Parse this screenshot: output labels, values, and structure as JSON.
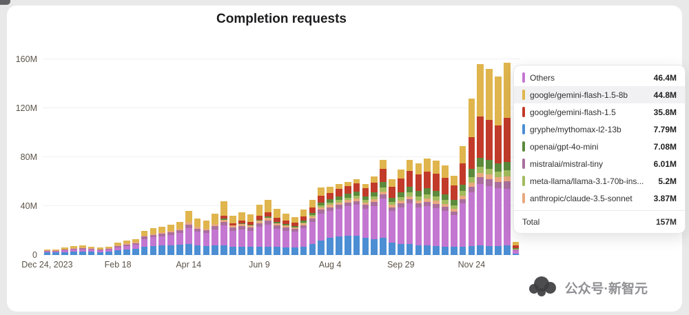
{
  "title": "Completion requests",
  "watermark": "公众号·新智元",
  "tooltip": {
    "rows": [
      {
        "label": "Others",
        "value": "46.4M",
        "color": "#c477d1",
        "highlight": false
      },
      {
        "label": "google/gemini-flash-1.5-8b",
        "value": "44.8M",
        "color": "#e0b54d",
        "highlight": true
      },
      {
        "label": "google/gemini-flash-1.5",
        "value": "35.8M",
        "color": "#c23b2a",
        "highlight": false
      },
      {
        "label": "gryphe/mythomax-l2-13b",
        "value": "7.79M",
        "color": "#4b8ed4",
        "highlight": false
      },
      {
        "label": "openai/gpt-4o-mini",
        "value": "7.08M",
        "color": "#5b8a3c",
        "highlight": false
      },
      {
        "label": "mistralai/mistral-tiny",
        "value": "6.01M",
        "color": "#aa6f9e",
        "highlight": false
      },
      {
        "label": "meta-llama/llama-3.1-70b-ins...",
        "value": "5.2M",
        "color": "#a2bc5e",
        "highlight": false
      },
      {
        "label": "anthropic/claude-3.5-sonnet",
        "value": "3.87M",
        "color": "#e8a97e",
        "highlight": false
      }
    ],
    "total_label": "Total",
    "total_value": "157M"
  },
  "chart_data": {
    "type": "bar",
    "stacked": true,
    "title": "Completion requests",
    "xlabel": "",
    "ylabel": "",
    "ylim": [
      0,
      160
    ],
    "unit": "millions of requests",
    "bar_interval": "weekly",
    "grid": true,
    "legend_position": "tooltip-overlay-right",
    "y_ticks": [
      0,
      40,
      80,
      120,
      160
    ],
    "y_tick_labels": [
      "0",
      "40M",
      "80M",
      "120M",
      "160M"
    ],
    "x_ticks": [
      {
        "index": 0,
        "label": "Dec 24, 2023"
      },
      {
        "index": 8,
        "label": "Feb 18"
      },
      {
        "index": 16,
        "label": "Apr 14"
      },
      {
        "index": 24,
        "label": "Jun 9"
      },
      {
        "index": 32,
        "label": "Aug 4"
      },
      {
        "index": 40,
        "label": "Sep 29"
      },
      {
        "index": 48,
        "label": "Nov 24"
      }
    ],
    "series": [
      {
        "name": "gryphe/mythomax-l2-13b",
        "color": "#4b8ed4",
        "values": [
          2,
          2,
          2.5,
          3,
          3,
          2.8,
          2.4,
          2.8,
          4,
          4.5,
          5,
          7,
          7.5,
          8,
          8,
          8.5,
          9,
          8,
          7.5,
          8,
          8,
          7,
          7,
          6.5,
          7,
          7,
          6.5,
          6,
          6,
          7,
          9,
          12,
          14,
          15,
          16,
          16,
          14,
          13,
          14,
          10,
          9,
          9,
          8,
          8,
          7.5,
          7,
          6.5,
          7,
          7.5,
          8,
          7.5,
          7.5,
          7.79,
          1
        ]
      },
      {
        "name": "Others",
        "color": "#c477d1",
        "values": [
          1,
          1,
          1.2,
          1.5,
          1.8,
          1.5,
          1.3,
          1.5,
          2.2,
          3,
          3.5,
          6,
          7,
          7.5,
          8.5,
          9.5,
          13,
          11,
          10.5,
          13,
          16,
          13,
          14,
          13.5,
          16,
          18,
          15,
          14,
          13,
          15,
          18,
          22,
          22,
          23,
          24,
          25,
          24,
          27,
          32,
          26,
          30,
          33,
          31,
          32,
          31,
          29,
          26,
          35,
          44,
          50,
          49,
          47,
          46.4,
          3
        ]
      },
      {
        "name": "mistralai/mistral-tiny",
        "color": "#aa6f9e",
        "values": [
          0.5,
          0.5,
          0.6,
          0.7,
          0.8,
          0.7,
          0.6,
          0.7,
          1,
          1.2,
          1.3,
          2,
          2,
          2,
          2.2,
          2.3,
          3,
          2.5,
          2.3,
          2.8,
          3,
          2.5,
          2.7,
          2.5,
          3,
          3.2,
          2.8,
          2.5,
          2.2,
          2.5,
          2.8,
          3,
          3,
          3,
          3,
          3.2,
          3,
          3.2,
          3.5,
          3,
          3.2,
          3.5,
          3.3,
          3.5,
          3.4,
          3.2,
          3,
          3.6,
          4.5,
          5.5,
          5.5,
          5.3,
          6.01,
          0.4
        ]
      },
      {
        "name": "anthropic/claude-3.5-sonnet",
        "color": "#e8a97e",
        "values": [
          0.3,
          0.3,
          0.4,
          0.5,
          0.5,
          0.4,
          0.4,
          0.4,
          0.6,
          0.8,
          0.8,
          1,
          1.2,
          1.2,
          1.3,
          1.4,
          2,
          1.5,
          1.4,
          1.7,
          2,
          1.5,
          1.6,
          1.5,
          2,
          2.2,
          1.8,
          1.5,
          1.4,
          1.6,
          1.8,
          2,
          2,
          2,
          2,
          2,
          2,
          2.2,
          2.5,
          2,
          2.2,
          2.5,
          2.4,
          2.5,
          2.4,
          2.3,
          2.1,
          2.6,
          3.2,
          3.8,
          3.7,
          3.6,
          3.87,
          0.25
        ]
      },
      {
        "name": "meta-llama/llama-3.1-70b-ins...",
        "color": "#a2bc5e",
        "values": [
          0,
          0,
          0,
          0,
          0,
          0,
          0,
          0,
          0,
          0,
          0,
          0,
          0,
          0,
          0,
          0,
          0,
          0,
          0,
          0,
          0,
          0,
          0,
          0,
          0,
          0,
          0,
          0,
          0,
          0.5,
          1,
          1.5,
          1.8,
          2,
          2,
          2.2,
          2,
          2.5,
          3,
          2.5,
          3,
          3.5,
          3.5,
          3.6,
          3.6,
          3.5,
          3.2,
          4,
          4.5,
          5,
          5,
          5,
          5.2,
          0.35
        ]
      },
      {
        "name": "openai/gpt-4o-mini",
        "color": "#5b8a3c",
        "values": [
          0,
          0,
          0,
          0,
          0,
          0,
          0,
          0,
          0,
          0,
          0,
          0,
          0,
          0,
          0,
          0,
          0,
          0,
          0,
          0,
          1,
          0.5,
          0.7,
          0.8,
          1,
          1.2,
          1.2,
          1.2,
          1.2,
          1.5,
          2,
          2.5,
          2.7,
          3,
          3,
          3.2,
          3,
          3.5,
          4.5,
          3.5,
          4,
          4.5,
          4.5,
          4.8,
          4.8,
          4.6,
          4.2,
          5.5,
          6.5,
          7,
          7,
          6.8,
          7.08,
          0.5
        ]
      },
      {
        "name": "google/gemini-flash-1.5",
        "color": "#c23b2a",
        "values": [
          0,
          0,
          0,
          0,
          0,
          0,
          0,
          0,
          0,
          0,
          0,
          0,
          0,
          0,
          0,
          0,
          0,
          0,
          0,
          0,
          2,
          1.5,
          2,
          2.2,
          3,
          3.5,
          3.2,
          3,
          2.8,
          3.4,
          4.4,
          5.5,
          5.5,
          6,
          6.5,
          7,
          6.5,
          8,
          11,
          9,
          11,
          13,
          13,
          14,
          14,
          13.5,
          12,
          17,
          26,
          34,
          33,
          31,
          35.8,
          2.4
        ]
      },
      {
        "name": "google/gemini-flash-1.5-8b",
        "color": "#e0b54d",
        "values": [
          1,
          1,
          1.3,
          1.8,
          1.9,
          1.6,
          1.3,
          1.6,
          2.2,
          2.5,
          2.4,
          4,
          4.3,
          4.3,
          5,
          5.3,
          9,
          7,
          6.3,
          8.5,
          12,
          6,
          7,
          6,
          9,
          9.9,
          7.5,
          5.8,
          4.4,
          5.5,
          6,
          6.5,
          5,
          4,
          3.5,
          3.4,
          3.5,
          4.6,
          7.5,
          6,
          7.6,
          9,
          9.3,
          10.6,
          10.3,
          9.9,
          8,
          14.3,
          31.8,
          42.7,
          41.3,
          39.8,
          44.8,
          3.1
        ]
      }
    ]
  }
}
